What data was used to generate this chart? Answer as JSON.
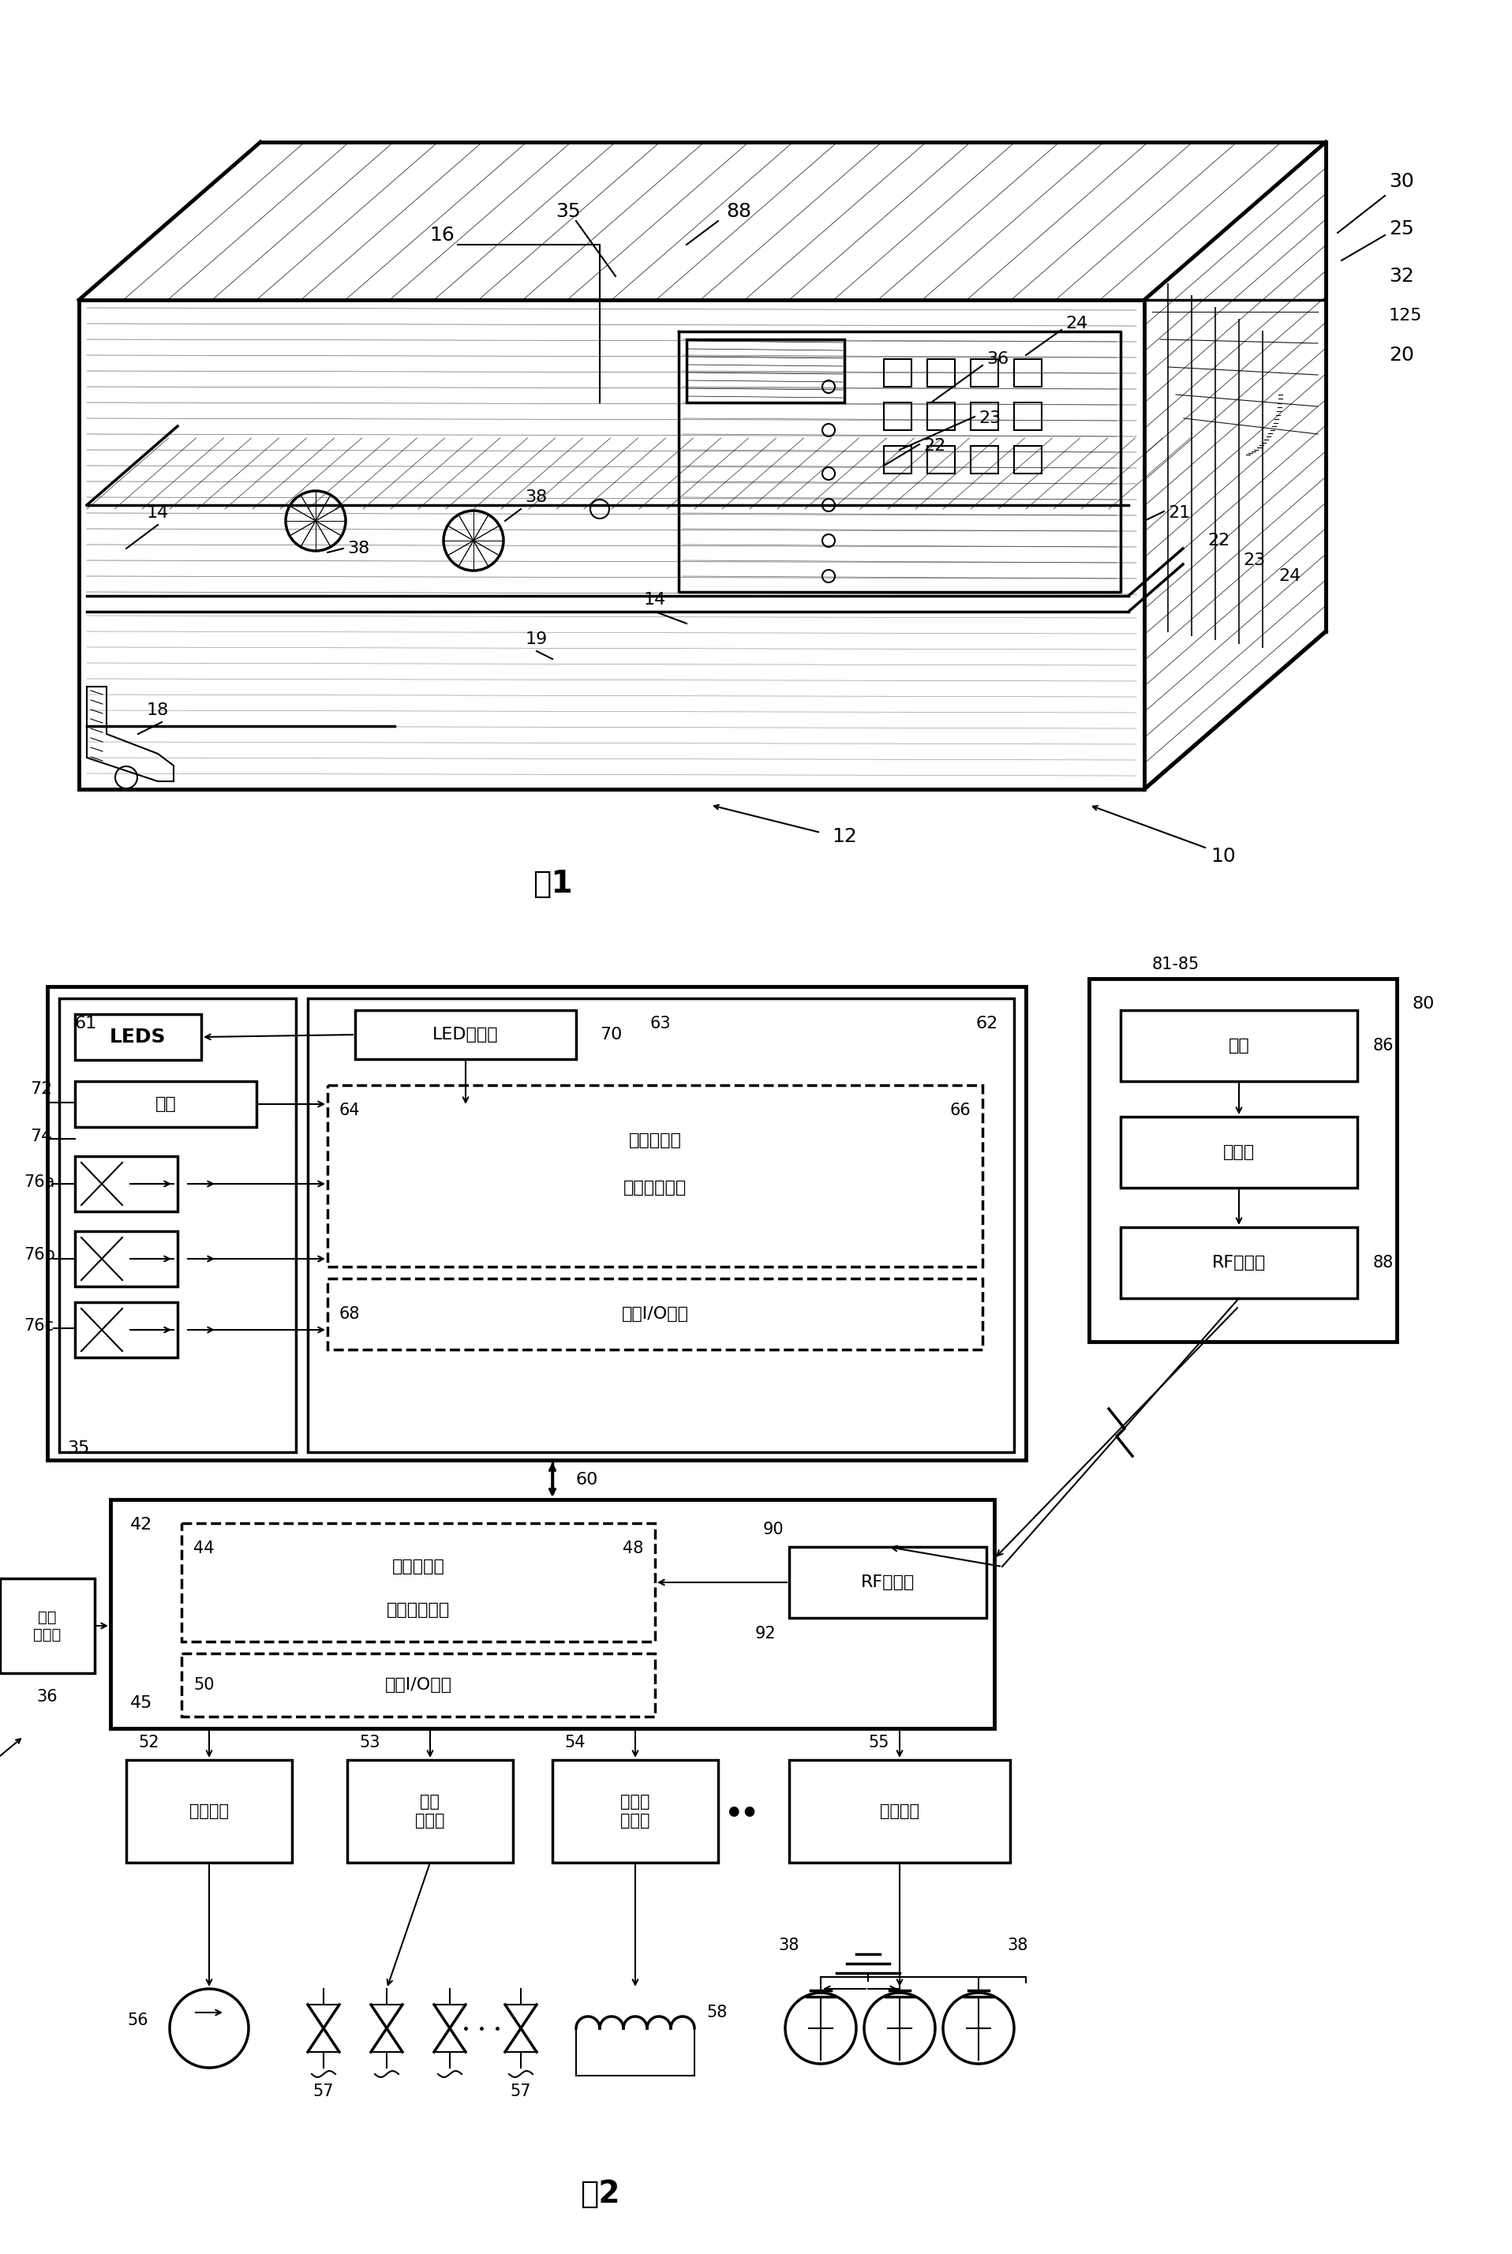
{
  "background_color": "#ffffff",
  "line_color": "#000000",
  "fig1_label": "图1",
  "fig2_label": "图2",
  "box_labels": {
    "leds": "LEDS",
    "keyboard": "键盘",
    "led_driver": "LED驱动器",
    "second_mem": "第二存储器",
    "second_cpu": "第二微处理器",
    "second_io": "第二I/O电路",
    "switch": "开关",
    "encoder": "编码器",
    "rf_tx": "RF发射器",
    "rf_rx": "RF接收器",
    "first_mem": "第一存储器",
    "first_cpu": "第一微处理器",
    "first_io": "第一I/O电路",
    "pump_driver": "泵驱动器",
    "valve_driver": "阀门\n驱动器",
    "heater_driver": "加热器\n驱动器",
    "light_driver": "灯驱动器",
    "water_sensor": "水位\n传感器"
  }
}
